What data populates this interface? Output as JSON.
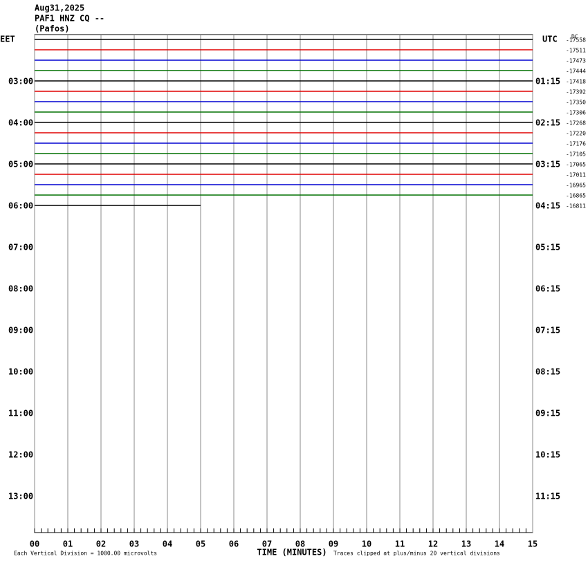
{
  "chart_data": {
    "type": "helicorder",
    "header": [
      "Aug31,2025",
      "PAF1 HNZ CQ --",
      "(Pafos)"
    ],
    "left_zone": "EET",
    "right_zone": "UTC",
    "corner_note": "DC",
    "x_label": "TIME (MINUTES)",
    "scale_note": "Each Vertical Division = 1000.00 microvolts",
    "clip_note": "Traces clipped at plus/minus 20 vertical divisions",
    "xlim": [
      0,
      15
    ],
    "xticks": [
      {
        "value": 0,
        "label": "00"
      },
      {
        "value": 1,
        "label": "01"
      },
      {
        "value": 2,
        "label": "02"
      },
      {
        "value": 3,
        "label": "03"
      },
      {
        "value": 4,
        "label": "04"
      },
      {
        "value": 5,
        "label": "05"
      },
      {
        "value": 6,
        "label": "06"
      },
      {
        "value": 7,
        "label": "07"
      },
      {
        "value": 8,
        "label": "08"
      },
      {
        "value": 9,
        "label": "09"
      },
      {
        "value": 10,
        "label": "10"
      },
      {
        "value": 11,
        "label": "11"
      },
      {
        "value": 12,
        "label": "12"
      },
      {
        "value": 13,
        "label": "13"
      },
      {
        "value": 14,
        "label": "14"
      },
      {
        "value": 15,
        "label": "15"
      }
    ],
    "colors": [
      "#000000",
      "#e00000",
      "#0000d0",
      "#007000"
    ],
    "traces": [
      {
        "label": "-17558",
        "end": 15
      },
      {
        "label": "-17511",
        "end": 15
      },
      {
        "label": "-17473",
        "end": 15
      },
      {
        "label": "-17444",
        "end": 15
      },
      {
        "label": "-17418",
        "end": 15
      },
      {
        "label": "-17392",
        "end": 15
      },
      {
        "label": "-17350",
        "end": 15
      },
      {
        "label": "-17306",
        "end": 15
      },
      {
        "label": "-17268",
        "end": 15
      },
      {
        "label": "-17220",
        "end": 15
      },
      {
        "label": "-17176",
        "end": 15
      },
      {
        "label": "-17105",
        "end": 15
      },
      {
        "label": "-17065",
        "end": 15
      },
      {
        "label": "-17011",
        "end": 15
      },
      {
        "label": "-16965",
        "end": 15
      },
      {
        "label": "-16865",
        "end": 15
      },
      {
        "label": "-16811",
        "end": 5
      }
    ],
    "hours": [
      {
        "eet": "03:00",
        "utc": "01:15"
      },
      {
        "eet": "04:00",
        "utc": "02:15"
      },
      {
        "eet": "05:00",
        "utc": "03:15"
      },
      {
        "eet": "06:00",
        "utc": "04:15"
      },
      {
        "eet": "07:00",
        "utc": "05:15"
      },
      {
        "eet": "08:00",
        "utc": "06:15"
      },
      {
        "eet": "09:00",
        "utc": "07:15"
      },
      {
        "eet": "10:00",
        "utc": "08:15"
      },
      {
        "eet": "11:00",
        "utc": "09:15"
      },
      {
        "eet": "12:00",
        "utc": "10:15"
      },
      {
        "eet": "13:00",
        "utc": "11:15"
      }
    ]
  }
}
